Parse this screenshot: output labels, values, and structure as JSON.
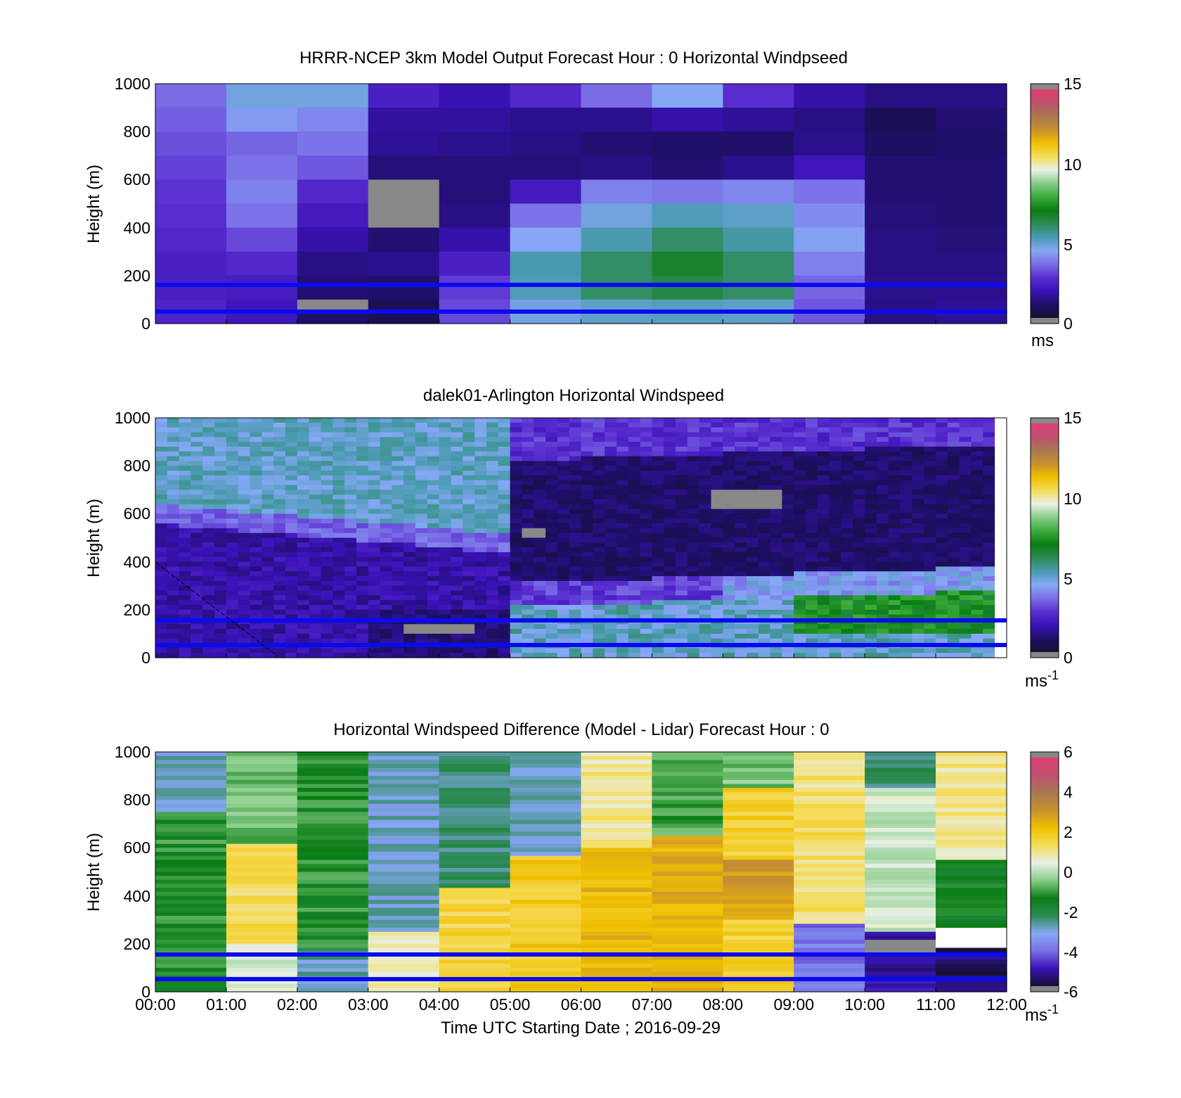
{
  "colormaps": {
    "speed": [
      "#161035",
      "#1e0f66",
      "#3a12b8",
      "#5a2fd0",
      "#7a6ee6",
      "#86a8f6",
      "#4a9ab0",
      "#2d8a55",
      "#0a7d14",
      "#3aaa3a",
      "#86cc86",
      "#e8f0e8",
      "#f5dc5a",
      "#f0c000",
      "#c89030",
      "#a87850",
      "#c05070",
      "#e04070"
    ],
    "diff": [
      "#161035",
      "#3a12b8",
      "#7a6ee6",
      "#86a8f6",
      "#2d8a55",
      "#0a7d14",
      "#86cc86",
      "#e8f0e8",
      "#f5dc5a",
      "#f0c000",
      "#c89030",
      "#a87850",
      "#c05070",
      "#e04070"
    ],
    "missing": "#888888",
    "overlay_line": "#0a0af0"
  },
  "chart_data": [
    {
      "type": "heatmap",
      "title": "HRRR-NCEP 3km Model Output   Forecast Hour : 0 Horizontal Windpseed",
      "ylabel": "Height (m)",
      "xlabel": "",
      "xlim": [
        0,
        12
      ],
      "ylim": [
        0,
        1000
      ],
      "x_ticks": [],
      "y_ticks": [
        "0",
        "200",
        "400",
        "600",
        "800",
        "1000"
      ],
      "colorbar": {
        "ticks": [
          "0",
          "5",
          "10",
          "15"
        ],
        "range": [
          0,
          15
        ],
        "unit": "ms",
        "unit_sup": ""
      },
      "overlay_lines_height": [
        50,
        150
      ],
      "grid": false
    },
    {
      "type": "heatmap",
      "title": "dalek01-Arlington  Horizontal Windspeed",
      "ylabel": "Height (m)",
      "xlabel": "",
      "xlim": [
        0,
        12
      ],
      "ylim": [
        0,
        1000
      ],
      "x_ticks": [],
      "y_ticks": [
        "0",
        "200",
        "400",
        "600",
        "800",
        "1000"
      ],
      "colorbar": {
        "ticks": [
          "0",
          "5",
          "10",
          "15"
        ],
        "range": [
          0,
          15
        ],
        "unit": "ms",
        "unit_sup": "-1"
      },
      "overlay_lines_height": [
        50,
        150
      ],
      "grid": false
    },
    {
      "type": "heatmap",
      "title": "Horizontal Windspeed Difference (Model - Lidar) Forecast Hour : 0",
      "ylabel": "Height (m)",
      "xlabel": "Time UTC  Starting Date ; 2016-09-29",
      "xlim": [
        0,
        12
      ],
      "ylim": [
        0,
        1000
      ],
      "x_ticks": [
        "00:00",
        "01:00",
        "02:00",
        "03:00",
        "04:00",
        "05:00",
        "06:00",
        "07:00",
        "08:00",
        "09:00",
        "10:00",
        "11:00",
        "12:00"
      ],
      "y_ticks": [
        "0",
        "200",
        "400",
        "600",
        "800",
        "1000"
      ],
      "colorbar": {
        "ticks": [
          "-6",
          "-4",
          "-2",
          "0",
          "2",
          "4",
          "6"
        ],
        "range": [
          -6,
          6
        ],
        "unit": "ms",
        "unit_sup": "-1"
      },
      "overlay_lines_height": [
        50,
        150
      ],
      "grid": false
    }
  ]
}
